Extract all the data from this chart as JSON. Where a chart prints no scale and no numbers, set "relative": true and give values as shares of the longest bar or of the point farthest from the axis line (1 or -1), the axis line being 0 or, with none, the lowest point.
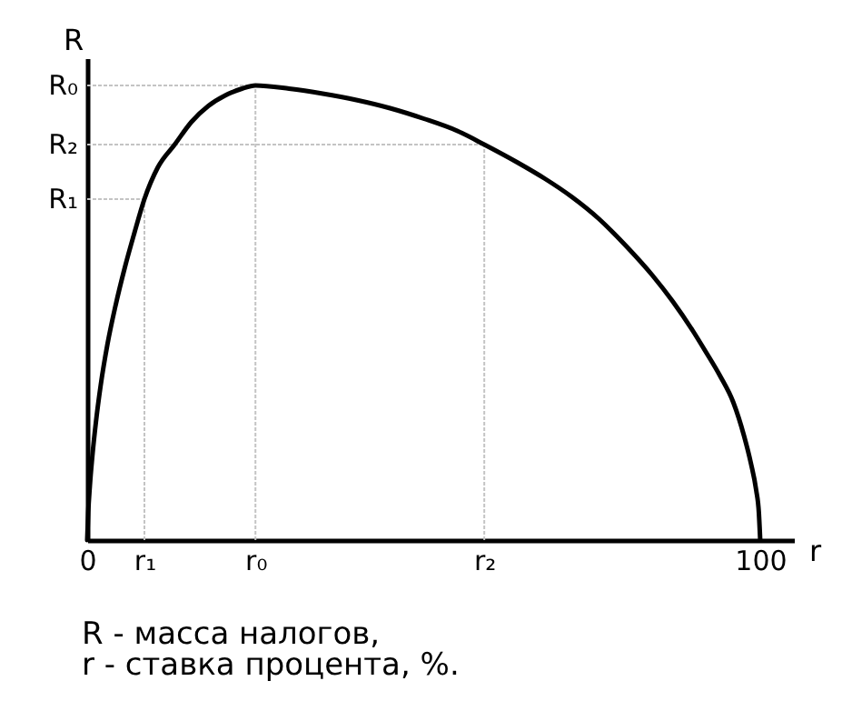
{
  "chart_data": {
    "type": "line",
    "xlabel": "r",
    "ylabel": "R",
    "annotations": [
      "R - масса налогов,",
      "r - ставка процента, %."
    ],
    "relative": true,
    "x": [
      0,
      0.15,
      0.4,
      0.8,
      1.3,
      2,
      3,
      4.2,
      5.6,
      7,
      8.5,
      10.5,
      13,
      15.5,
      18,
      20.5,
      23,
      25,
      30,
      35,
      40,
      45,
      50,
      55,
      59,
      64,
      68,
      72,
      76,
      80,
      84,
      87,
      90,
      92,
      94,
      96,
      97.6,
      98.6,
      99.4,
      99.8,
      100
    ],
    "series": [
      {
        "color": "#000000",
        "values": [
          0,
          0.06,
          0.12,
          0.19,
          0.26,
          0.34,
          0.43,
          0.515,
          0.6,
          0.675,
          0.75,
          0.82,
          0.87,
          0.92,
          0.955,
          0.978,
          0.993,
          1,
          0.993,
          0.982,
          0.968,
          0.95,
          0.927,
          0.9,
          0.87,
          0.83,
          0.795,
          0.755,
          0.707,
          0.648,
          0.582,
          0.525,
          0.46,
          0.412,
          0.362,
          0.303,
          0.229,
          0.17,
          0.11,
          0.06,
          0
        ]
      }
    ],
    "xlim": [
      0,
      105
    ],
    "xticks": [
      0,
      {
        "value": 8.5,
        "label": "r₁"
      },
      {
        "value": 25,
        "label": "r₀"
      },
      {
        "value": 59,
        "label": "r₂"
      },
      100
    ],
    "ref_lines": [
      {
        "axis": "y",
        "value": 1,
        "label": "R₀",
        "color": "#c4c4c4",
        "line_style": "dotted"
      },
      {
        "axis": "y",
        "value": 0.87,
        "label": "R₂",
        "color": "#c4c4c4",
        "line_style": "dotted"
      },
      {
        "axis": "y",
        "value": 0.75,
        "label": "R₁",
        "color": "#c4c4c4",
        "line_style": "dotted"
      },
      {
        "axis": "x",
        "value": 8.5,
        "color": "#c4c4c4",
        "line_style": "dotted"
      },
      {
        "axis": "x",
        "value": 25,
        "color": "#c4c4c4",
        "line_style": "dotted"
      },
      {
        "axis": "x",
        "value": 59,
        "color": "#c4c4c4",
        "line_style": "dotted"
      }
    ],
    "line_style": "solid"
  }
}
